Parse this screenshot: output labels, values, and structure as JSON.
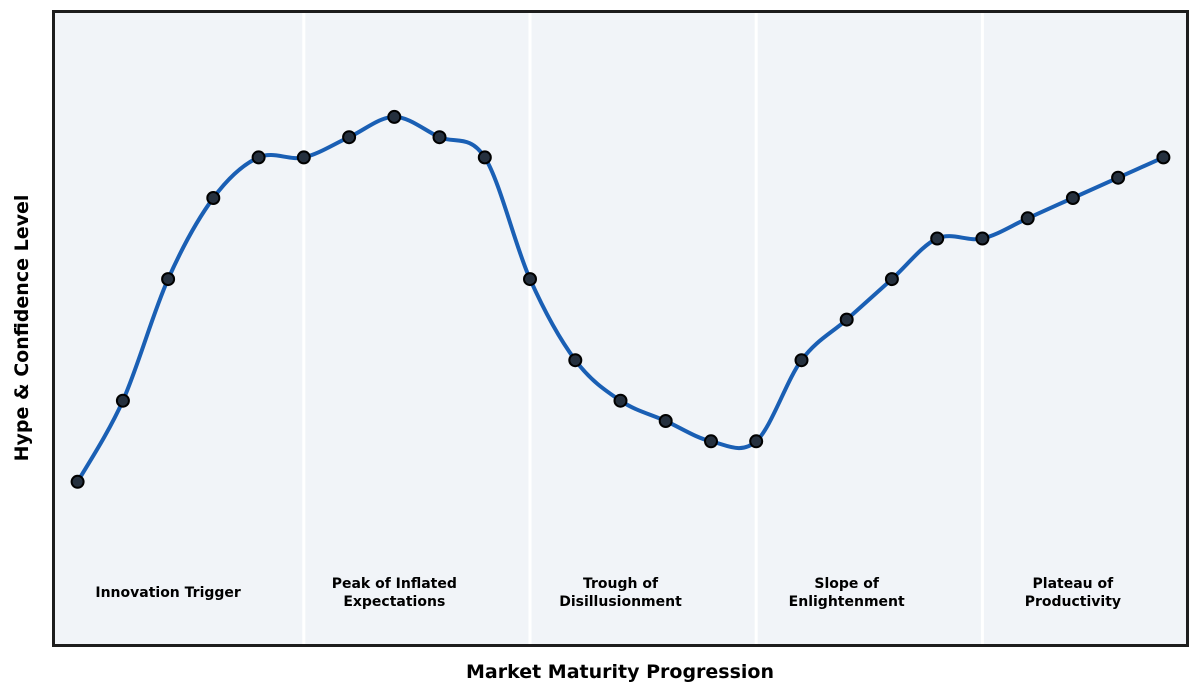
{
  "chart_data": {
    "type": "line",
    "title": "",
    "xlabel": "Market Maturity Progression",
    "ylabel": "Hype & Confidence Level",
    "x": [
      0,
      1,
      2,
      3,
      4,
      5,
      6,
      7,
      8,
      9,
      10,
      11,
      12,
      13,
      14,
      15,
      16,
      17,
      18,
      19,
      20,
      21,
      22,
      23,
      24
    ],
    "values": [
      10,
      26,
      50,
      66,
      74,
      74,
      78,
      82,
      78,
      74,
      50,
      34,
      26,
      22,
      18,
      18,
      34,
      42,
      50,
      58,
      58,
      62,
      66,
      70,
      74
    ],
    "xlim": [
      -0.5,
      24.5
    ],
    "ylim": [
      -22,
      102.5
    ],
    "grid": false,
    "legend": null,
    "marker": "circle",
    "smooth": true,
    "line_width": 4,
    "marker_radius": 6,
    "phase_boundaries_x": [
      5,
      10,
      15,
      20
    ],
    "phase_label_y": -12,
    "phases": [
      {
        "label": "Innovation Trigger",
        "center_x": 2
      },
      {
        "label": "Peak of Inflated\nExpectations",
        "center_x": 7
      },
      {
        "label": "Trough of\nDisillusionment",
        "center_x": 12
      },
      {
        "label": "Slope of\nEnlightenment",
        "center_x": 17
      },
      {
        "label": "Plateau of\nProductivity",
        "center_x": 22
      }
    ],
    "colors": {
      "line": "#1a5fb4",
      "marker_fill": "#25303e",
      "marker_edge": "#000000",
      "plot_background": "#f1f4f8",
      "phase_separator": "#ffffff",
      "frame_border": "#1d1d1d",
      "text": "#000000",
      "figure_background": "#ffffff"
    }
  }
}
